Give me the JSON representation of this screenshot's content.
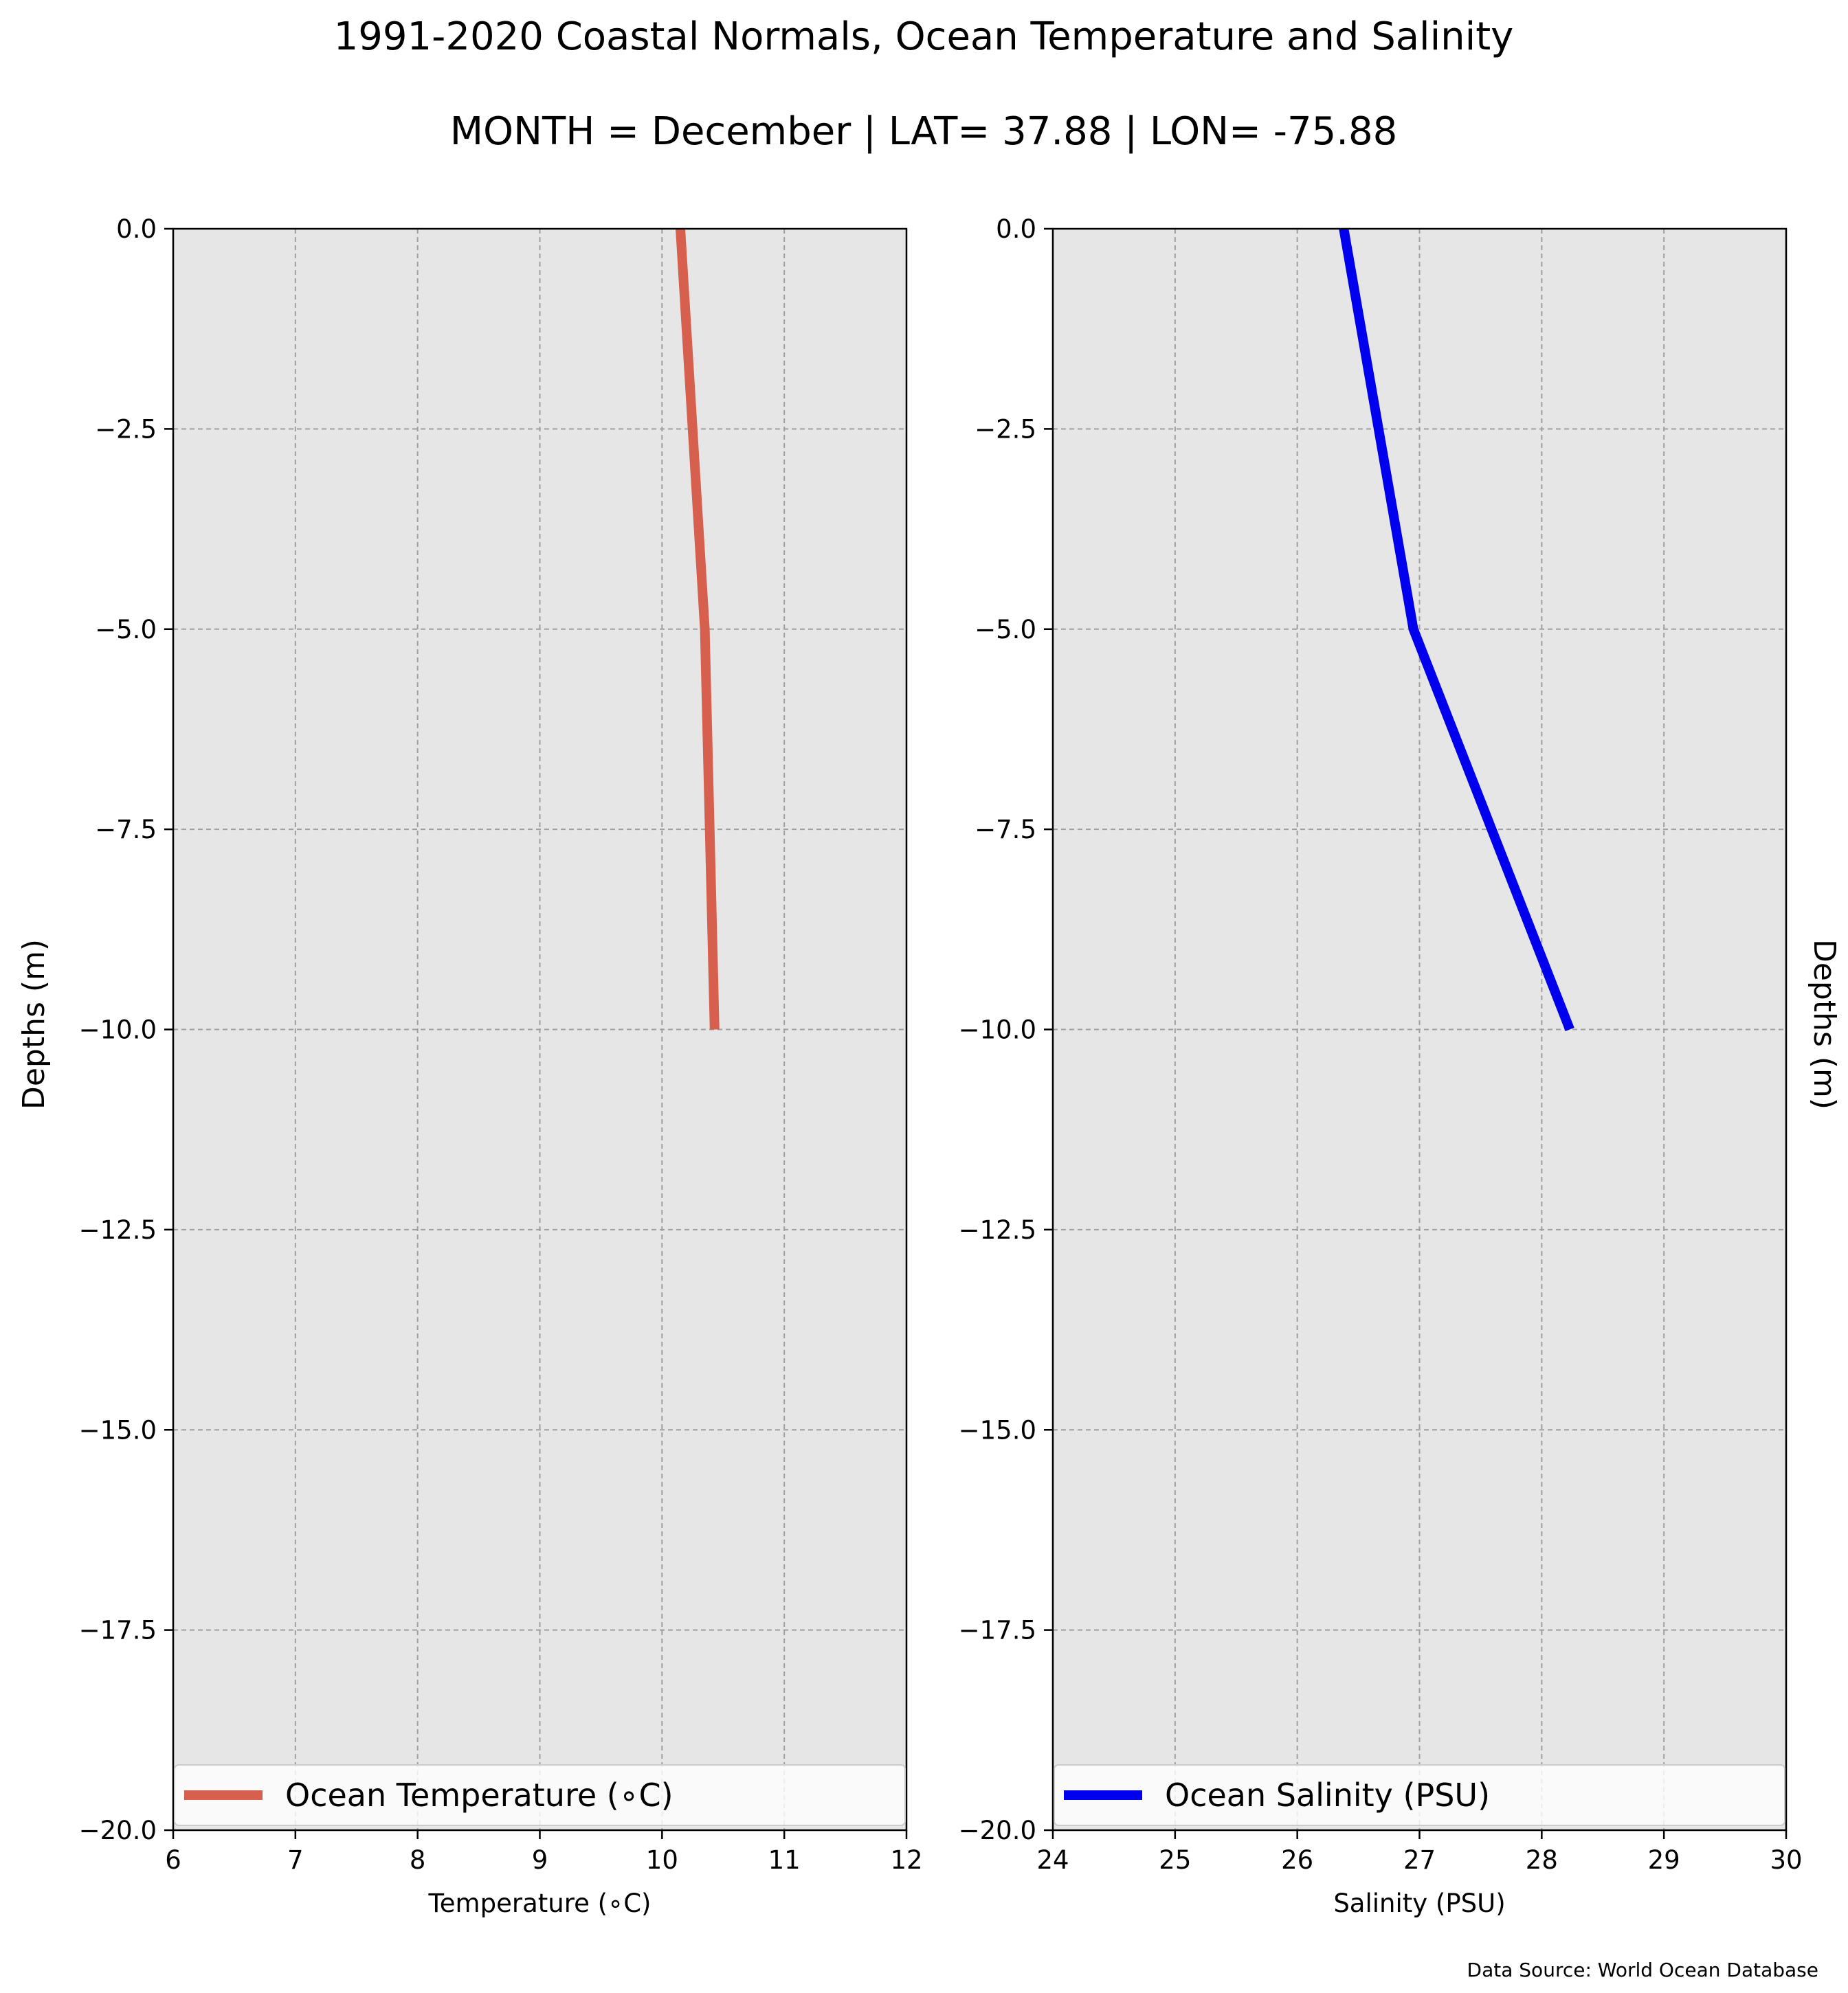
{
  "title_line1": "1991-2020 Coastal Normals, Ocean Temperature and Salinity",
  "title_line2": "MONTH = December | LAT= 37.88 | LON= -75.88",
  "left_ylabel": "Depths (m)",
  "right_ylabel": "Depths (m)",
  "source": "Data Source: World Ocean Database",
  "colors": {
    "plot_bg": "#e6e6e6",
    "grid": "#a0a0a0",
    "temperature": "#d6604d",
    "salinity": "#0000ee"
  },
  "chart_data": [
    {
      "type": "line",
      "xlabel": "Temperature (∘C)",
      "ylabel": "Depths (m)",
      "xlim": [
        6,
        12
      ],
      "ylim": [
        -20,
        0
      ],
      "xticks": [
        "6",
        "7",
        "8",
        "9",
        "10",
        "11",
        "12"
      ],
      "yticks": [
        "0.0",
        "−2.5",
        "−5.0",
        "−7.5",
        "−10.0",
        "−12.5",
        "−15.0",
        "−17.5",
        "−20.0"
      ],
      "grid": true,
      "legend": "lower center",
      "series": [
        {
          "name": "Ocean Temperature (∘C)",
          "x": [
            10.15,
            10.35,
            10.43
          ],
          "y": [
            0,
            -5,
            -10
          ]
        }
      ]
    },
    {
      "type": "line",
      "xlabel": "Salinity (PSU)",
      "ylabel": "Depths (m)",
      "xlim": [
        24,
        30
      ],
      "ylim": [
        -20,
        0
      ],
      "xticks": [
        "24",
        "25",
        "26",
        "27",
        "28",
        "29",
        "30"
      ],
      "yticks": [
        "0.0",
        "−2.5",
        "−5.0",
        "−7.5",
        "−10.0",
        "−12.5",
        "−15.0",
        "−17.5",
        "−20.0"
      ],
      "grid": true,
      "legend": "lower center",
      "series": [
        {
          "name": "Ocean Salinity (PSU)",
          "x": [
            26.38,
            26.95,
            28.23
          ],
          "y": [
            0,
            -5,
            -10
          ]
        }
      ]
    }
  ]
}
